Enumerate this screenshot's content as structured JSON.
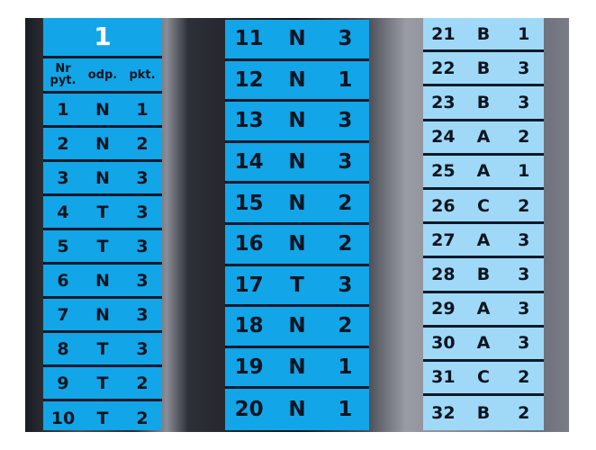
{
  "left": {
    "title": "1",
    "headers": [
      "Nr pyt.",
      "odp.",
      "pkt."
    ],
    "rows": [
      [
        "1",
        "N",
        "1"
      ],
      [
        "2",
        "N",
        "2"
      ],
      [
        "3",
        "N",
        "3"
      ],
      [
        "4",
        "T",
        "3"
      ],
      [
        "5",
        "T",
        "3"
      ],
      [
        "6",
        "N",
        "3"
      ],
      [
        "7",
        "N",
        "3"
      ],
      [
        "8",
        "T",
        "3"
      ],
      [
        "9",
        "T",
        "2"
      ],
      [
        "10",
        "T",
        "2"
      ]
    ]
  },
  "middle": {
    "rows": [
      [
        "11",
        "N",
        "3"
      ],
      [
        "12",
        "N",
        "1"
      ],
      [
        "13",
        "N",
        "3"
      ],
      [
        "14",
        "N",
        "3"
      ],
      [
        "15",
        "N",
        "2"
      ],
      [
        "16",
        "N",
        "2"
      ],
      [
        "17",
        "T",
        "3"
      ],
      [
        "18",
        "N",
        "2"
      ],
      [
        "19",
        "N",
        "1"
      ],
      [
        "20",
        "N",
        "1"
      ]
    ]
  },
  "right": {
    "rows": [
      [
        "21",
        "B",
        "1"
      ],
      [
        "22",
        "B",
        "3"
      ],
      [
        "23",
        "B",
        "3"
      ],
      [
        "24",
        "A",
        "2"
      ],
      [
        "25",
        "A",
        "1"
      ],
      [
        "26",
        "C",
        "2"
      ],
      [
        "27",
        "A",
        "3"
      ],
      [
        "28",
        "B",
        "3"
      ],
      [
        "29",
        "A",
        "3"
      ],
      [
        "30",
        "A",
        "3"
      ],
      [
        "31",
        "C",
        "2"
      ],
      [
        "32",
        "B",
        "2"
      ]
    ]
  },
  "colors": {
    "blue": "#12a5e8",
    "light_blue": "#a0d9f7"
  }
}
